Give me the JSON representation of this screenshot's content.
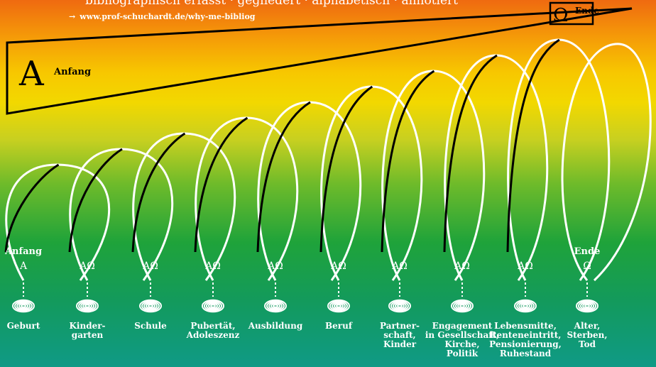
{
  "header": {
    "subtitle_text": "bibliographisch erfasst · gegliedert · alphabetisch · annotiert",
    "url_arrow": "→",
    "url_text": "www.prof-schuchardt.de/why-me-bibliog"
  },
  "start_marker": {
    "letter": "A",
    "label": "Anfang"
  },
  "end_marker": {
    "letter": "Ω",
    "label": "Ende"
  },
  "stages": [
    {
      "head": "Anfang",
      "symbol": "A",
      "label": "Geburt"
    },
    {
      "head": "",
      "symbol": "AΩ",
      "label": "Kinder-\ngarten"
    },
    {
      "head": "",
      "symbol": "AΩ",
      "label": "Schule"
    },
    {
      "head": "",
      "symbol": "AΩ",
      "label": "Pubertät,\nAdoleszenz"
    },
    {
      "head": "",
      "symbol": "AΩ",
      "label": "Ausbildung"
    },
    {
      "head": "",
      "symbol": "AΩ",
      "label": "Beruf"
    },
    {
      "head": "",
      "symbol": "AΩ",
      "label": "Partner-\nschaft,\nKinder"
    },
    {
      "head": "",
      "symbol": "AΩ",
      "label": "Engagement\nin Gesellschaft,\nKirche,\nPolitik"
    },
    {
      "head": "",
      "symbol": "AΩ",
      "label": "Lebensmitte,\nRenteneintritt,\nPensionierung,\nRuhestand"
    },
    {
      "head": "Ende",
      "symbol": "Ω",
      "label": "Alter,\nSterben,\nTod"
    }
  ],
  "icons": {
    "stage_icon": "spiral-coil-icon"
  },
  "colors": {
    "line_white": "#ffffff",
    "line_black": "#000000"
  }
}
